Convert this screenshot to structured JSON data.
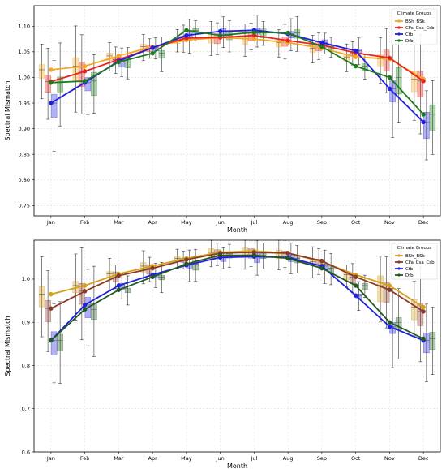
{
  "chart_data": [
    {
      "type": "line",
      "xlabel": "Month",
      "ylabel": "Spectral Mismatch",
      "ylim": [
        0.73,
        1.14
      ],
      "yticks": [
        0.75,
        0.8,
        0.85,
        0.9,
        0.95,
        1.0,
        1.05,
        1.1
      ],
      "ytick_decimals": 2,
      "grid": true,
      "legend_title": "Climate Groups",
      "legend_position": "top-right",
      "categories": [
        "Jan",
        "Feb",
        "Mar",
        "Apr",
        "May",
        "Jun",
        "Jul",
        "Aug",
        "Sep",
        "Oct",
        "Nov",
        "Dec"
      ],
      "series": [
        {
          "name": "BSh_BSk",
          "color": "#f5a623",
          "values": [
            1.015,
            1.022,
            1.042,
            1.06,
            1.073,
            1.078,
            1.075,
            1.068,
            1.057,
            1.04,
            1.036,
            0.997
          ]
        },
        {
          "name": "CFa_Csa_Csb",
          "color": "#e8231c",
          "values": [
            0.992,
            1.012,
            1.035,
            1.058,
            1.077,
            1.078,
            1.082,
            1.072,
            1.063,
            1.048,
            1.038,
            0.993
          ]
        },
        {
          "name": "Cfb",
          "color": "#1f1fe0",
          "values": [
            0.95,
            0.99,
            1.032,
            1.058,
            1.082,
            1.09,
            1.092,
            1.085,
            1.068,
            1.052,
            0.978,
            0.913
          ]
        },
        {
          "name": "Dfb",
          "color": "#1e7a1e",
          "values": [
            0.99,
            0.993,
            1.03,
            1.047,
            1.092,
            1.082,
            1.088,
            1.087,
            1.06,
            1.022,
            1.0,
            0.928
          ]
        }
      ]
    },
    {
      "type": "line",
      "xlabel": "Month",
      "ylabel": "Spectral Mismatch",
      "ylim": [
        0.6,
        1.09
      ],
      "yticks": [
        0.6,
        0.7,
        0.8,
        0.9,
        1.0
      ],
      "ytick_decimals": 1,
      "grid": true,
      "legend_title": "Climate Groups",
      "legend_position": "top-right",
      "categories": [
        "Jan",
        "Feb",
        "Mar",
        "Apr",
        "May",
        "Jun",
        "Jul",
        "Aug",
        "Sep",
        "Oct",
        "Nov",
        "Dec"
      ],
      "series": [
        {
          "name": "BSh_BSk",
          "color": "#d4a017",
          "values": [
            0.965,
            0.985,
            1.012,
            1.03,
            1.048,
            1.062,
            1.065,
            1.06,
            1.04,
            1.01,
            0.985,
            0.935
          ]
        },
        {
          "name": "CFa_Csa_Csb",
          "color": "#8b3a2a",
          "values": [
            0.932,
            0.972,
            1.008,
            1.025,
            1.045,
            1.06,
            1.062,
            1.06,
            1.042,
            1.005,
            0.975,
            0.925
          ]
        },
        {
          "name": "Cfb",
          "color": "#1f1fe0",
          "values": [
            0.858,
            0.94,
            0.985,
            1.01,
            1.032,
            1.05,
            1.052,
            1.05,
            1.03,
            0.962,
            0.89,
            0.858
          ]
        },
        {
          "name": "Dfb",
          "color": "#1e5a1e",
          "values": [
            0.858,
            0.93,
            0.975,
            1.005,
            1.035,
            1.055,
            1.055,
            1.048,
            1.025,
            0.985,
            0.9,
            0.862
          ]
        }
      ]
    }
  ]
}
